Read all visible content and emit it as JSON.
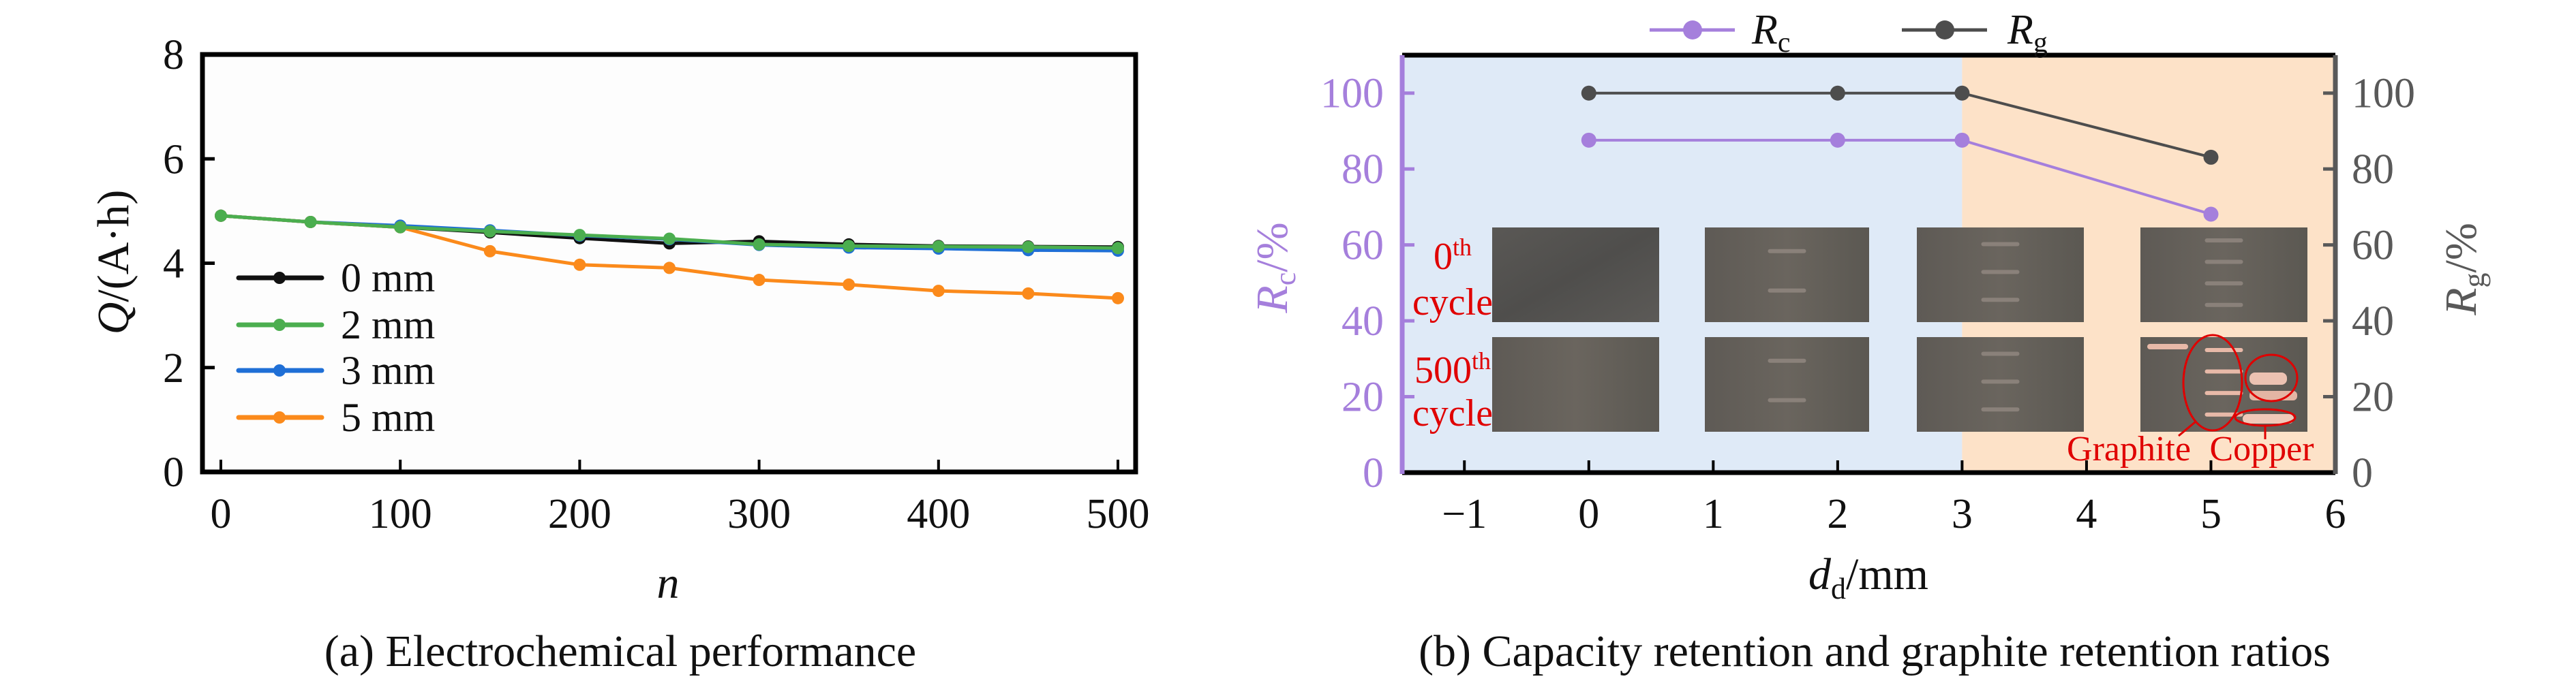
{
  "chart_data": [
    {
      "type": "line",
      "panel": "a",
      "caption": "(a) Electrochemical performance",
      "xlabel": "n",
      "ylabel": "Q/(A·h)",
      "ylabel_parts": {
        "var": "Q",
        "unit": "/(A·h)"
      },
      "xlim": [
        -5,
        515
      ],
      "ylim": [
        0,
        8
      ],
      "xticks": [
        0,
        100,
        200,
        300,
        400,
        500
      ],
      "xtick_labels": [
        "0",
        "100",
        "200",
        "300",
        "400",
        "500"
      ],
      "yticks": [
        0,
        2,
        4,
        6,
        8
      ],
      "ytick_labels": [
        "0",
        "2",
        "4",
        "6",
        "8"
      ],
      "grid": false,
      "legend_position": "lower-left",
      "x": [
        0,
        50,
        100,
        150,
        200,
        250,
        300,
        350,
        400,
        450,
        500
      ],
      "series": [
        {
          "name": "0 mm",
          "color": "#111111",
          "values": [
            4.91,
            4.79,
            4.69,
            4.59,
            4.48,
            4.38,
            4.42,
            4.36,
            4.33,
            4.32,
            4.31
          ]
        },
        {
          "name": "3 mm",
          "color": "#1f6fd6",
          "values": [
            4.91,
            4.79,
            4.72,
            4.63,
            4.53,
            4.46,
            4.35,
            4.3,
            4.28,
            4.25,
            4.24
          ]
        },
        {
          "name": "5 mm",
          "color": "#fb8a1b",
          "values": [
            4.91,
            4.79,
            4.69,
            4.23,
            3.97,
            3.91,
            3.68,
            3.59,
            3.47,
            3.42,
            3.33
          ]
        },
        {
          "name": "2 mm",
          "color": "#4bae4f",
          "values": [
            4.91,
            4.79,
            4.69,
            4.61,
            4.54,
            4.47,
            4.36,
            4.33,
            4.32,
            4.31,
            4.29
          ]
        }
      ],
      "legend_order": [
        "0 mm",
        "2 mm",
        "3 mm",
        "5 mm"
      ]
    },
    {
      "type": "line",
      "panel": "b",
      "caption": "(b) Capacity retention and graphite retention ratios",
      "xlabel": "d_d/mm",
      "xlabel_parts": {
        "var": "d",
        "sub": "d",
        "unit": "/mm"
      },
      "ylabel_left": "R_c/%",
      "ylabel_left_parts": {
        "var": "R",
        "sub": "c",
        "unit": "/%"
      },
      "ylabel_right": "R_g/%",
      "ylabel_right_parts": {
        "var": "R",
        "sub": "g",
        "unit": "/%"
      },
      "xlim": [
        -1.5,
        6
      ],
      "ylim": [
        0,
        110
      ],
      "xticks": [
        -1,
        0,
        1,
        2,
        3,
        4,
        5,
        6
      ],
      "xtick_labels": [
        "−1",
        "0",
        "1",
        "2",
        "3",
        "4",
        "5",
        "6"
      ],
      "yticks": [
        0,
        20,
        40,
        60,
        80,
        100
      ],
      "ytick_labels": [
        "0",
        "20",
        "40",
        "60",
        "80",
        "100"
      ],
      "grid": false,
      "legend_position": "top-center",
      "background_regions": [
        {
          "from": -1.5,
          "to": 3,
          "color": "#dfeaf7"
        },
        {
          "from": 3,
          "to": 6,
          "color": "#fde2c8"
        }
      ],
      "x": [
        0,
        2,
        3,
        5
      ],
      "series": [
        {
          "name": "R_c",
          "label_var": "R",
          "label_sub": "c",
          "axis": "left",
          "color": "#a57fdc",
          "values": [
            87.6,
            87.6,
            87.6,
            68.1
          ]
        },
        {
          "name": "R_g",
          "label_var": "R",
          "label_sub": "g",
          "axis": "right",
          "color": "#4d4d4d",
          "values": [
            100,
            100,
            100,
            83.1
          ]
        }
      ],
      "inset_photos": {
        "row_labels": [
          {
            "num": "0",
            "sup": "th",
            "word": "cycle"
          },
          {
            "num": "500",
            "sup": "th",
            "word": "cycle"
          }
        ],
        "columns_at_d": [
          0,
          2,
          3,
          5
        ],
        "annotations": [
          "Graphite",
          "Copper"
        ]
      }
    }
  ]
}
